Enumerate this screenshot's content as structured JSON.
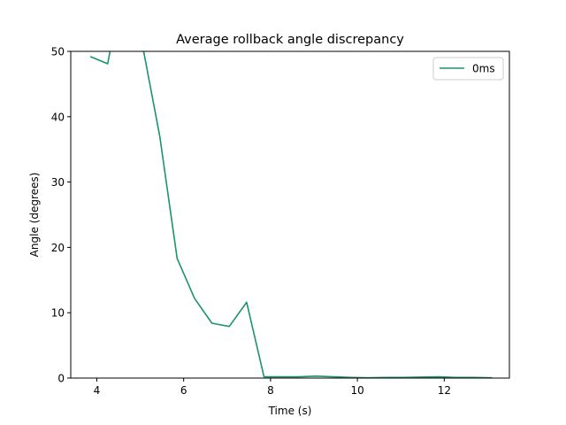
{
  "chart_data": {
    "type": "line",
    "title": "Average rollback angle discrepancy",
    "xlabel": "Time (s)",
    "ylabel": "Angle (degrees)",
    "xlim": [
      3.4,
      13.5
    ],
    "ylim": [
      0,
      50
    ],
    "xticks": [
      4,
      6,
      8,
      10,
      12
    ],
    "yticks": [
      0,
      10,
      20,
      30,
      40,
      50
    ],
    "xtick_labels": [
      "4",
      "6",
      "8",
      "10",
      "12"
    ],
    "ytick_labels": [
      "0",
      "10",
      "20",
      "30",
      "40",
      "50"
    ],
    "grid": false,
    "legend": {
      "position": "top-right"
    },
    "series": [
      {
        "name": "0ms",
        "color": "#1a936f",
        "x": [
          3.85,
          4.25,
          4.65,
          5.05,
          5.45,
          5.85,
          6.25,
          6.65,
          7.05,
          7.45,
          7.85,
          8.25,
          8.65,
          9.05,
          9.45,
          9.85,
          10.25,
          10.65,
          11.05,
          11.45,
          11.85,
          12.25,
          12.65,
          13.1
        ],
        "y": [
          49.2,
          48.1,
          62,
          51,
          37,
          18.3,
          12.2,
          8.4,
          7.9,
          11.6,
          0.2,
          0.2,
          0.2,
          0.3,
          0.2,
          0.1,
          0.05,
          0.1,
          0.1,
          0.15,
          0.2,
          0.1,
          0.1,
          0.05
        ]
      }
    ]
  }
}
